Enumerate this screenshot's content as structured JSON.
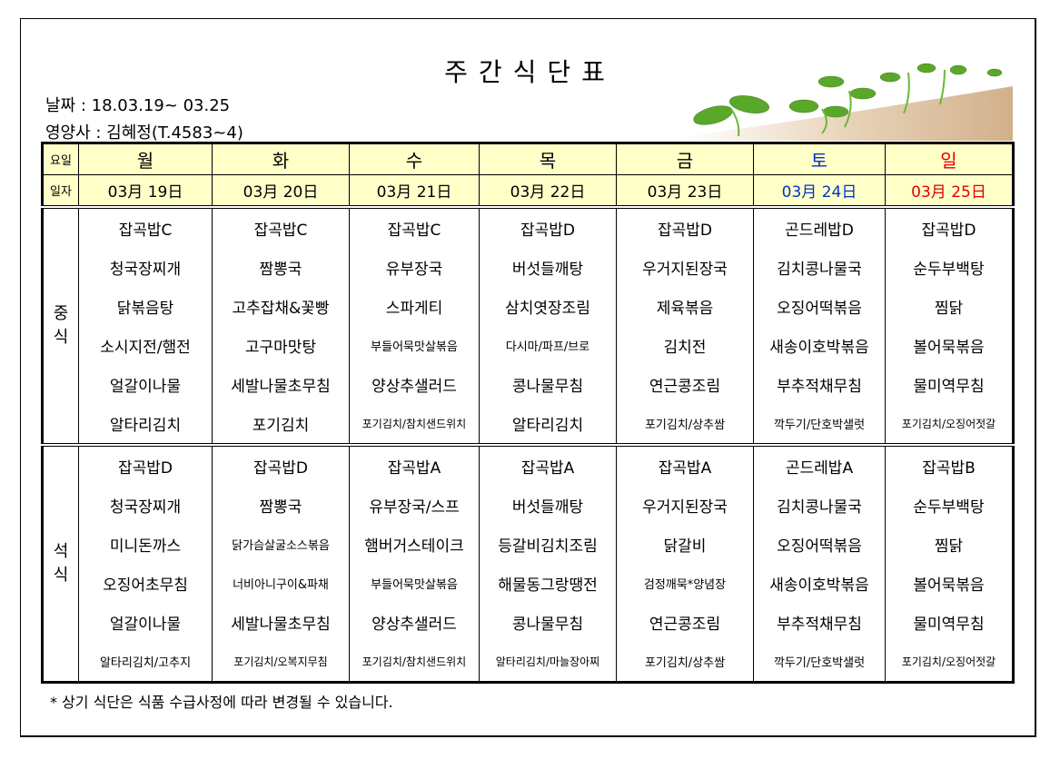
{
  "title": "주간식단표",
  "date_line": "날짜 : 18.03.19~ 03.25",
  "dietitian_line": "영양사 : 김혜정(T.4583~4)",
  "header": {
    "day_label": "요일",
    "date_label": "일자",
    "days": [
      "월",
      "화",
      "수",
      "목",
      "금",
      "토",
      "일"
    ],
    "dates": [
      "03月 19日",
      "03月 20日",
      "03月 21日",
      "03月 22日",
      "03月 23日",
      "03月 24日",
      "03月 25日"
    ]
  },
  "colors": {
    "saturday": "#0033cc",
    "sunday": "#e00000",
    "header_bg": "#ffffc8"
  },
  "lunch": {
    "label": "중식",
    "rows": [
      [
        "잡곡밥C",
        "잡곡밥C",
        "잡곡밥C",
        "잡곡밥D",
        "잡곡밥D",
        "곤드레밥D",
        "잡곡밥D"
      ],
      [
        "청국장찌개",
        "짬뽕국",
        "유부장국",
        "버섯들깨탕",
        "우거지된장국",
        "김치콩나물국",
        "순두부백탕"
      ],
      [
        "닭볶음탕",
        "고추잡채&꽃빵",
        "스파게티",
        "삼치엿장조림",
        "제육볶음",
        "오징어떡볶음",
        "찜닭"
      ],
      [
        "소시지전/햄전",
        "고구마맛탕",
        "부들어묵맛살볶음",
        "다시마/파프/브로",
        "김치전",
        "새송이호박볶음",
        "볼어묵볶음"
      ],
      [
        "얼갈이나물",
        "세발나물초무침",
        "양상추샐러드",
        "콩나물무침",
        "연근콩조림",
        "부추적채무침",
        "물미역무침"
      ],
      [
        "알타리김치",
        "포기김치",
        "포기김치/참치샌드위치",
        "알타리김치",
        "포기김치/상추쌈",
        "깍두기/단호박샐럿",
        "포기김치/오징어젓갈"
      ]
    ]
  },
  "dinner": {
    "label": "석식",
    "rows": [
      [
        "잡곡밥D",
        "잡곡밥D",
        "잡곡밥A",
        "잡곡밥A",
        "잡곡밥A",
        "곤드레밥A",
        "잡곡밥B"
      ],
      [
        "청국장찌개",
        "짬뽕국",
        "유부장국/스프",
        "버섯들깨탕",
        "우거지된장국",
        "김치콩나물국",
        "순두부백탕"
      ],
      [
        "미니돈까스",
        "닭가슴살굴소스볶음",
        "햄버거스테이크",
        "등갈비김치조림",
        "닭갈비",
        "오징어떡볶음",
        "찜닭"
      ],
      [
        "오징어초무침",
        "너비아니구이&파채",
        "부들어묵맛살볶음",
        "해물동그랑땡전",
        "검정깨묵*양념장",
        "새송이호박볶음",
        "볼어묵볶음"
      ],
      [
        "얼갈이나물",
        "세발나물초무침",
        "양상추샐러드",
        "콩나물무침",
        "연근콩조림",
        "부추적채무침",
        "물미역무침"
      ],
      [
        "알타리김치/고추지",
        "포기김치/오복지무침",
        "포기김치/참치샌드위치",
        "알타리김치/마늘장아찌",
        "포기김치/상추쌈",
        "깍두기/단호박샐럿",
        "포기김치/오징어젓갈"
      ]
    ]
  },
  "note": "* 상기 식단은 식품 수급사정에 따라 변경될 수 있습니다."
}
